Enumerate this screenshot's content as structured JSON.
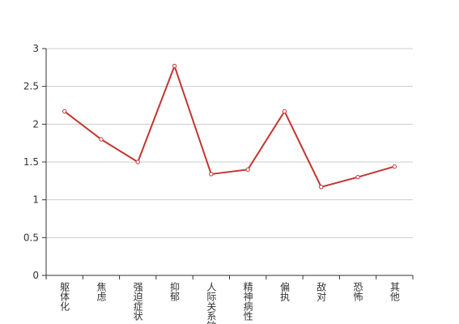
{
  "chart_data": {
    "type": "line",
    "categories": [
      "躯体化",
      "焦虑",
      "强迫症状",
      "抑郁",
      "人际关系敏感",
      "精神病性",
      "偏执",
      "敌对",
      "恐怖",
      "其他"
    ],
    "series": [
      {
        "color": "#c23531",
        "values": [
          2.17,
          1.8,
          1.5,
          2.77,
          1.34,
          1.4,
          2.17,
          1.17,
          1.3,
          1.44
        ]
      }
    ],
    "ylim": [
      0,
      3
    ],
    "yticks": [
      0,
      0.5,
      1,
      1.5,
      2,
      2.5,
      3
    ],
    "grid": true
  }
}
